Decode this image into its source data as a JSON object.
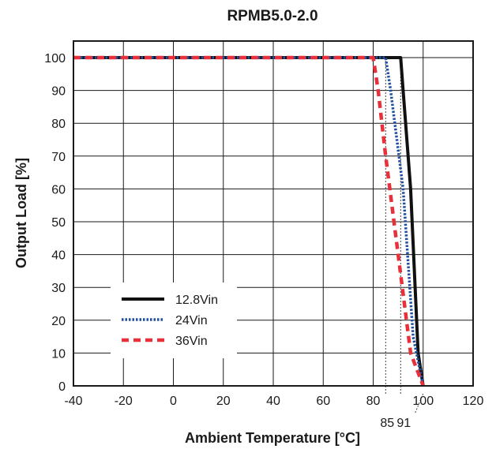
{
  "chart_data": {
    "type": "line",
    "title": "RPMB5.0-2.0",
    "xlabel": "Ambient Temperature [°C]",
    "ylabel": "Output Load [%]",
    "xlim": [
      -40,
      120
    ],
    "ylim": [
      0,
      105
    ],
    "x_ticks": [
      -40,
      -20,
      0,
      20,
      40,
      60,
      80,
      100,
      120
    ],
    "y_ticks": [
      0,
      10,
      20,
      30,
      40,
      50,
      60,
      70,
      80,
      90,
      100
    ],
    "grid": true,
    "legend_position": "lower-left",
    "series": [
      {
        "name": "12.8Vin",
        "color": "#111111",
        "dash": "solid",
        "points": [
          [
            -40,
            100
          ],
          [
            91,
            100
          ],
          [
            92,
            90
          ],
          [
            95,
            60
          ],
          [
            98,
            10
          ],
          [
            100,
            0
          ]
        ]
      },
      {
        "name": "24Vin",
        "color": "#1f4fa0",
        "dash": "dotted",
        "points": [
          [
            -40,
            100
          ],
          [
            85,
            100
          ],
          [
            87,
            90
          ],
          [
            92,
            60
          ],
          [
            96,
            15
          ],
          [
            100,
            0
          ]
        ]
      },
      {
        "name": "36Vin",
        "color": "#e8303a",
        "dash": "dashed",
        "points": [
          [
            -40,
            100
          ],
          [
            80,
            100
          ],
          [
            82,
            90
          ],
          [
            85,
            70
          ],
          [
            90,
            40
          ],
          [
            95,
            10
          ],
          [
            100,
            0
          ]
        ]
      }
    ],
    "annotations": [
      {
        "text": "85",
        "x": 85
      },
      {
        "text": "91",
        "x": 91
      }
    ]
  }
}
